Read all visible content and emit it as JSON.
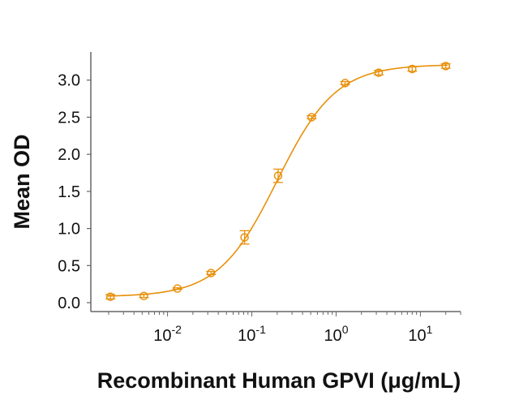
{
  "chart_data": {
    "type": "scatter",
    "title": "",
    "xlabel": "Recombinant Human GPVI (μg/mL)",
    "ylabel": "Mean OD",
    "xscale": "log",
    "xlim": [
      0.00123,
      30
    ],
    "ylim": [
      -0.12,
      3.38
    ],
    "xticks": [
      0.01,
      0.1,
      1,
      10
    ],
    "xtick_labels": [
      {
        "base": "10",
        "exp": "-2"
      },
      {
        "base": "10",
        "exp": "-1"
      },
      {
        "base": "10",
        "exp": "0"
      },
      {
        "base": "10",
        "exp": "1"
      }
    ],
    "yticks": [
      0.0,
      0.5,
      1.0,
      1.5,
      2.0,
      2.5,
      3.0
    ],
    "ytick_labels": [
      "0.0",
      "0.5",
      "1.0",
      "1.5",
      "2.0",
      "2.5",
      "3.0"
    ],
    "grid": false,
    "color": "#E8900A",
    "series": [
      {
        "x": [
          0.0021,
          0.00524,
          0.0131,
          0.0328,
          0.082,
          0.205,
          0.512,
          1.28,
          3.2,
          8,
          20
        ],
        "y": [
          0.08,
          0.09,
          0.19,
          0.4,
          0.88,
          1.71,
          2.5,
          2.96,
          3.1,
          3.15,
          3.19
        ],
        "error": [
          0.03,
          0.02,
          0.01,
          0.02,
          0.09,
          0.09,
          0.02,
          0.02,
          0.03,
          0.03,
          0.03
        ]
      }
    ],
    "fit": {
      "model": "4PL",
      "bottom": 0.08,
      "top": 3.21,
      "ec50": 0.2,
      "hill": 1.25
    }
  }
}
